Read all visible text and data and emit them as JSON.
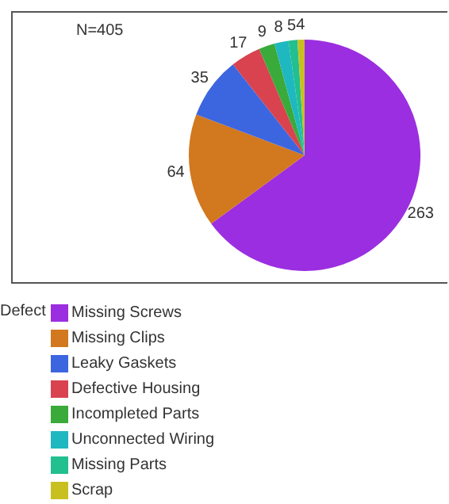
{
  "chart_data": {
    "type": "pie",
    "legend_title": "Defect",
    "annotations": [
      "N=405"
    ],
    "categories": [
      "Missing Screws",
      "Missing Clips",
      "Leaky Gaskets",
      "Defective Housing",
      "Incompleted Parts",
      "Unconnected Wiring",
      "Missing Parts",
      "Scrap"
    ],
    "values": [
      263,
      64,
      35,
      17,
      9,
      8,
      5,
      4
    ],
    "colors": [
      "#9b2ee0",
      "#d2781f",
      "#3c66e0",
      "#d8434f",
      "#3aaa3a",
      "#1fb8c0",
      "#22bf8f",
      "#c8c020"
    ],
    "data_labels": true,
    "legend": "bottom"
  }
}
